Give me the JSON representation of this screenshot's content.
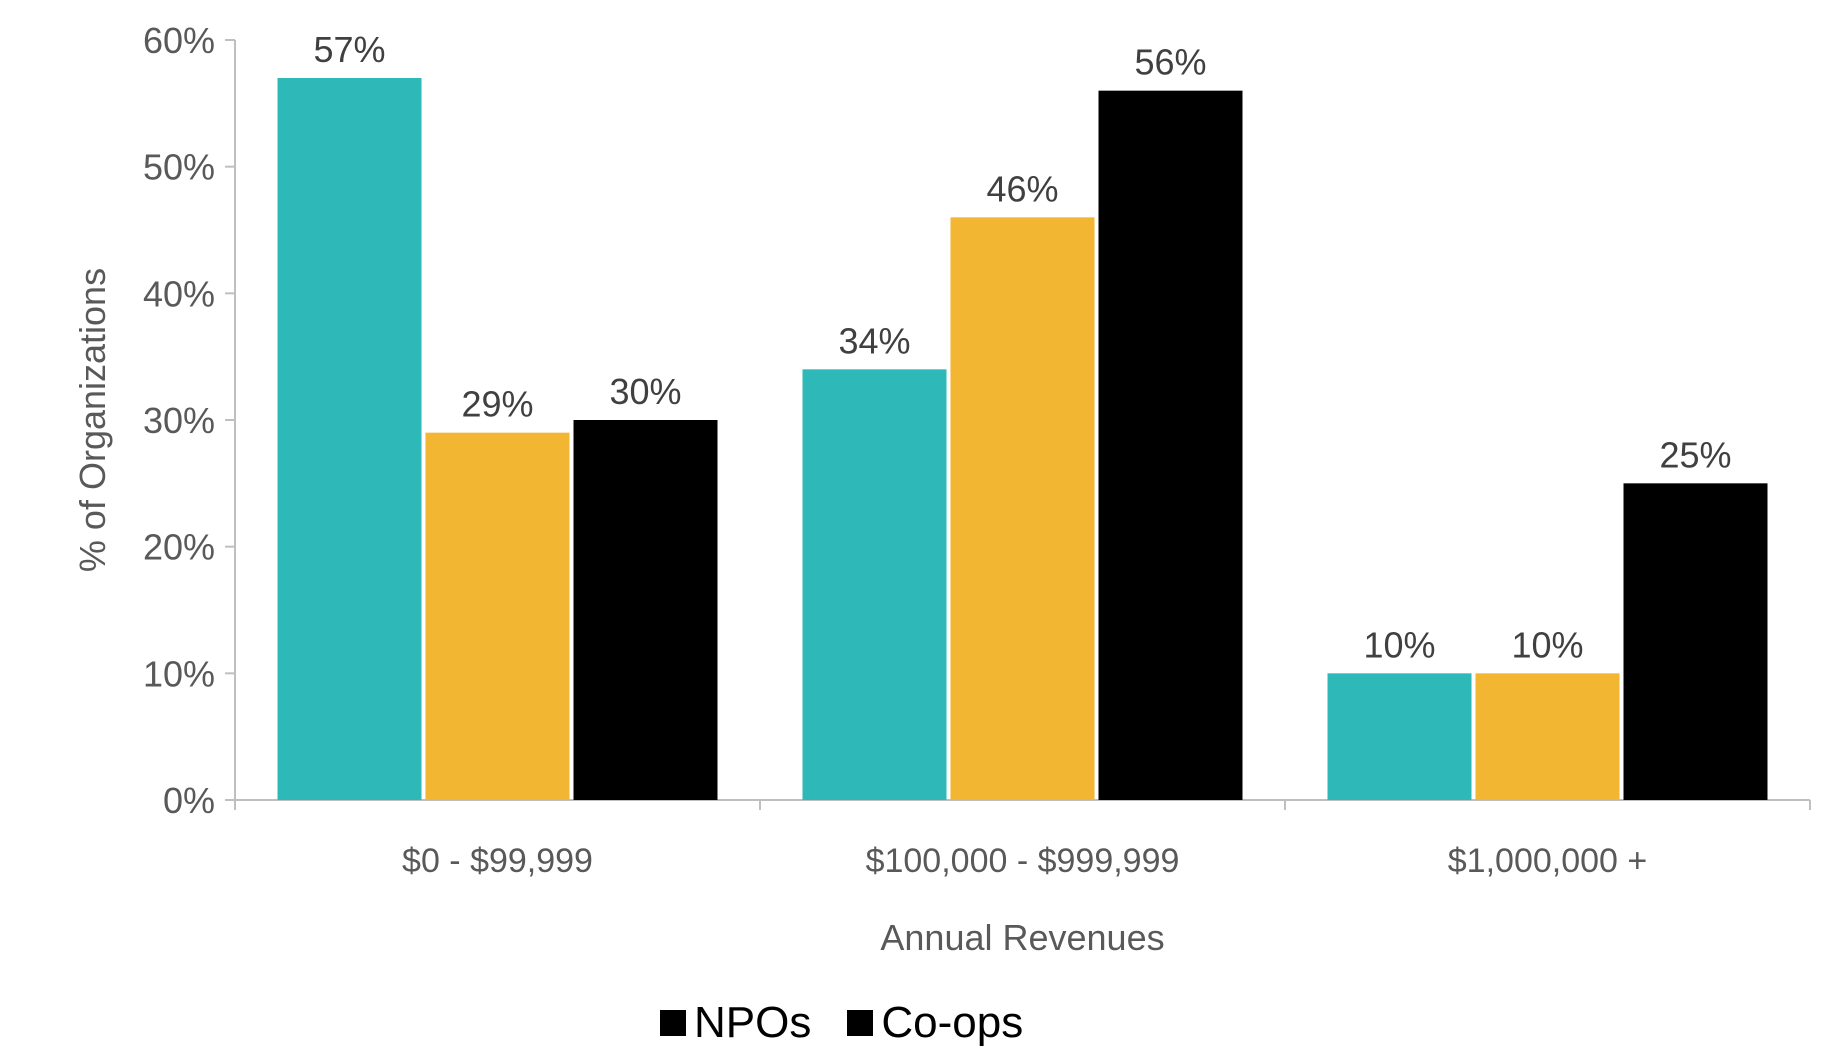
{
  "chart_data": {
    "type": "bar",
    "title": "",
    "xlabel": "Annual Revenues",
    "ylabel": "% of Organizations",
    "categories": [
      "$0 - $99,999",
      "$100,000 - $999,999",
      "$1,000,000 +"
    ],
    "ylim": [
      0,
      60
    ],
    "yticks": [
      "0%",
      "10%",
      "20%",
      "30%",
      "40%",
      "50%",
      "60%"
    ],
    "grid": false,
    "legend_position": "bottom",
    "series": [
      {
        "name": "NPOs",
        "color": "#2EB8B8",
        "values": [
          57,
          34,
          10
        ]
      },
      {
        "name": "Co-ops",
        "color": "#F2B632",
        "values": [
          29,
          46,
          10
        ]
      },
      {
        "name": "",
        "color": "#000000",
        "values": [
          30,
          56,
          25
        ]
      }
    ],
    "data_labels": [
      [
        "57%",
        "29%",
        "30%"
      ],
      [
        "34%",
        "46%",
        "56%"
      ],
      [
        "10%",
        "10%",
        "25%"
      ]
    ]
  },
  "legend": {
    "items": [
      {
        "label": "NPOs",
        "color": "#000000"
      },
      {
        "label": "Co-ops",
        "color": "#000000"
      }
    ]
  }
}
